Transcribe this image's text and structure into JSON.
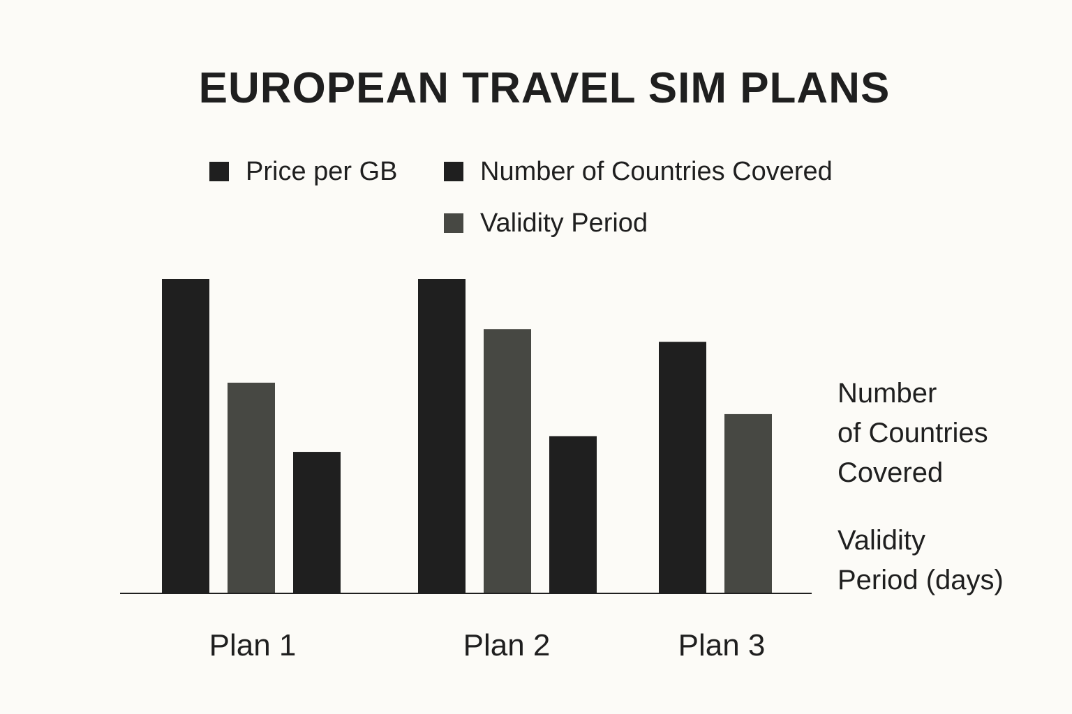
{
  "chart_data": {
    "type": "bar",
    "title": "EUROPEAN TRAVEL SIM PLANS",
    "categories": [
      "Plan 1",
      "Plan 2",
      "Plan 3"
    ],
    "legend": [
      {
        "label": "Price per GB",
        "color": "#1f1f1f"
      },
      {
        "label": "Number of Countries Covered",
        "color": "#1f1f1f"
      },
      {
        "label": "Validity Period",
        "color": "#474843"
      }
    ],
    "groups": [
      {
        "category": "Plan 1",
        "bars": [
          {
            "value": 100,
            "color": "#1f1f1f"
          },
          {
            "value": 67,
            "color": "#474843"
          },
          {
            "value": 45,
            "color": "#1f1f1f"
          }
        ]
      },
      {
        "category": "Plan 2",
        "bars": [
          {
            "value": 100,
            "color": "#1f1f1f"
          },
          {
            "value": 84,
            "color": "#474843"
          },
          {
            "value": 50,
            "color": "#1f1f1f"
          }
        ]
      },
      {
        "category": "Plan 3",
        "bars": [
          {
            "value": 80,
            "color": "#1f1f1f"
          },
          {
            "value": 57,
            "color": "#474843"
          }
        ]
      }
    ],
    "ylim": [
      0,
      100
    ],
    "grid": false,
    "legend_placement": "top",
    "side_labels": [
      "Number of Countries Covered",
      "Validity Period (days)"
    ],
    "side_label_lines": [
      [
        "Number",
        "of Countries",
        "Covered"
      ],
      [
        "Validity",
        "Period (days)"
      ]
    ]
  }
}
